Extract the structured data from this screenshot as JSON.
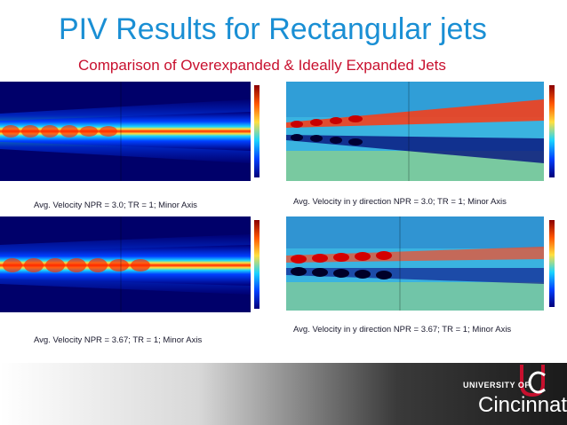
{
  "slide": {
    "title": "PIV Results for Rectangular jets",
    "subtitle": "Comparison of Overexpanded  & Ideally Expanded Jets"
  },
  "captions": {
    "top_left": "Avg. Velocity NPR = 3.0; TR = 1; Minor Axis",
    "top_right": "Avg. Velocity in y direction NPR = 3.0; TR = 1; Minor Axis",
    "bottom_left": "Avg. Velocity NPR = 3.67; TR = 1; Minor Axis",
    "bottom_right": "Avg. Velocity in y direction NPR = 3.67; TR = 1; Minor Axis"
  },
  "logo": {
    "line1": "UNIVERSITY OF",
    "line2": "Cincinnati"
  },
  "colors": {
    "title": "#1a8fd4",
    "subtitle": "#c8102e",
    "footer_dark": "#2a2a2a",
    "brand_red": "#c8102e"
  }
}
